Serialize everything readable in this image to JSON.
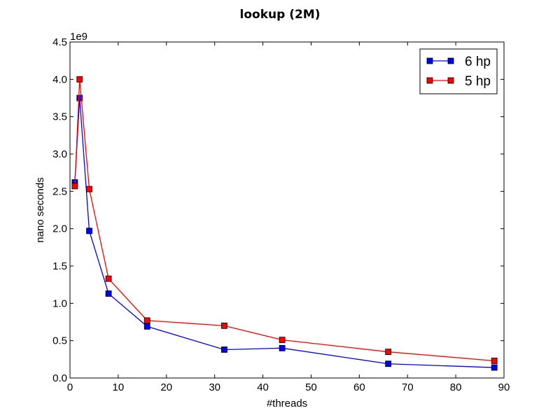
{
  "chart_data": {
    "type": "line",
    "title": "lookup (2M)",
    "xlabel": "#threads",
    "ylabel": "nano seconds",
    "y_offset_text": "1e9",
    "xlim": [
      0,
      90
    ],
    "ylim": [
      0.0,
      4.5
    ],
    "x_ticks": [
      "0",
      "10",
      "20",
      "30",
      "40",
      "50",
      "60",
      "70",
      "80",
      "90"
    ],
    "y_ticks": [
      "0.0",
      "0.5",
      "1.0",
      "1.5",
      "2.0",
      "2.5",
      "3.0",
      "3.5",
      "4.0",
      "4.5"
    ],
    "grid": false,
    "legend_position": "top-right",
    "x": [
      1,
      2,
      4,
      8,
      16,
      32,
      44,
      66,
      88
    ],
    "series": [
      {
        "name": "6 hp",
        "color": "#0000ff",
        "values": [
          2.62,
          3.75,
          1.97,
          1.13,
          0.69,
          0.38,
          0.4,
          0.19,
          0.14
        ]
      },
      {
        "name": "5 hp",
        "color": "#ff0000",
        "values": [
          2.57,
          4.0,
          2.53,
          1.33,
          0.77,
          0.7,
          0.51,
          0.35,
          0.23
        ]
      }
    ]
  }
}
